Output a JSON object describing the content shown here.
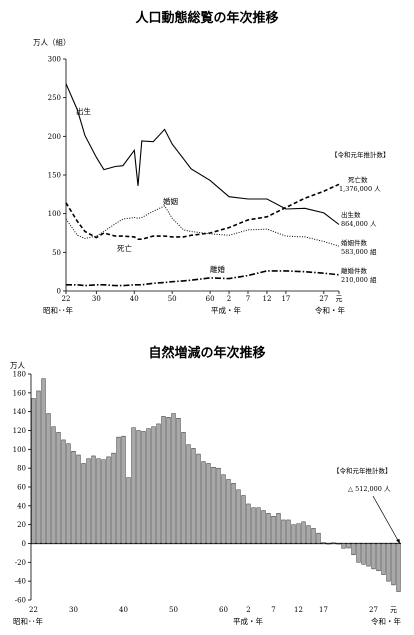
{
  "chart_data": [
    {
      "type": "line",
      "title": "人口動態総覧の年次推移",
      "ylabel": "万人（組）",
      "ylim": [
        0,
        300
      ],
      "yticks": [
        "0",
        "50",
        "100",
        "150",
        "200",
        "250",
        "300"
      ],
      "x_tick_labels": [
        "22",
        "30",
        "40",
        "50",
        "60",
        "2",
        "7",
        "12",
        "17",
        "27",
        "元"
      ],
      "x_era_labels": {
        "showa": "昭和･･年",
        "heisei": "平成・年",
        "reiwa": "令和・年"
      },
      "years": [
        1947,
        1950,
        1952,
        1955,
        1957,
        1960,
        1962,
        1965,
        1966,
        1967,
        1970,
        1973,
        1975,
        1978,
        1980,
        1985,
        1990,
        1995,
        2000,
        2005,
        2010,
        2015,
        2019
      ],
      "series": [
        {
          "name": "出生",
          "style": "solid",
          "values": [
            268,
            234,
            201,
            173,
            157,
            161,
            162,
            182,
            136,
            194,
            193,
            209,
            190,
            171,
            158,
            143,
            122,
            119,
            119,
            106,
            107,
            101,
            86
          ]
        },
        {
          "name": "死亡",
          "style": "dashed",
          "values": [
            114,
            90,
            77,
            69,
            75,
            71,
            71,
            70,
            67,
            67,
            71,
            71,
            70,
            70,
            72,
            75,
            82,
            92,
            96,
            108,
            120,
            129,
            138
          ]
        },
        {
          "name": "婚姻",
          "style": "dotted",
          "values": [
            93,
            72,
            68,
            71,
            77,
            87,
            93,
            95,
            94,
            95,
            103,
            110,
            94,
            79,
            77,
            74,
            72,
            79,
            80,
            71,
            70,
            64,
            58
          ]
        },
        {
          "name": "離婚",
          "style": "dashdot",
          "values": [
            8,
            8,
            7,
            8,
            8,
            7,
            7,
            8,
            8,
            8,
            10,
            11,
            12,
            13,
            14,
            17,
            16,
            20,
            26,
            26,
            25,
            23,
            21
          ]
        }
      ],
      "labels_on_chart": {
        "birth": "出生",
        "death": "死亡",
        "marriage": "婚姻",
        "divorce": "離婚"
      },
      "legend": {
        "header": "【令和元年推計数】",
        "items": [
          {
            "name": "死亡数",
            "value": "1,376,000 人"
          },
          {
            "name": "出生数",
            "value": "864,000 人"
          },
          {
            "name": "婚姻件数",
            "value": "583,000 組"
          },
          {
            "name": "離婚件数",
            "value": "210,000 組"
          }
        ]
      }
    },
    {
      "type": "bar",
      "title": "自然増減の年次推移",
      "ylabel": "万人",
      "ylim": [
        -60,
        180
      ],
      "yticks": [
        "-60",
        "-40",
        "-20",
        "0",
        "20",
        "40",
        "60",
        "80",
        "100",
        "120",
        "140",
        "160",
        "180"
      ],
      "x_tick_labels": [
        "22",
        "30",
        "40",
        "50",
        "60",
        "2",
        "7",
        "12",
        "17",
        "27",
        "元"
      ],
      "x_era_labels": {
        "showa": "昭和･･年",
        "heisei": "平成・年",
        "reiwa": "令和・年"
      },
      "first_year": 1947,
      "values": [
        154,
        162,
        175,
        138,
        124,
        118,
        110,
        106,
        98,
        94,
        85,
        90,
        93,
        90,
        89,
        92,
        96,
        113,
        114,
        70,
        123,
        120,
        119,
        122,
        124,
        127,
        135,
        134,
        138,
        133,
        118,
        105,
        101,
        95,
        87,
        85,
        81,
        80,
        73,
        68,
        64,
        57,
        51,
        42,
        38,
        38,
        35,
        32,
        29,
        32,
        25,
        25,
        20,
        21,
        23,
        19,
        16,
        11,
        1,
        -0.2,
        0.8,
        -0.2,
        -5,
        -4.8,
        -12,
        -20,
        -22,
        -24,
        -27,
        -29,
        -33,
        -40,
        -44,
        -51
      ],
      "legend": {
        "header": "【令和元年推計数】",
        "items": [
          {
            "name": "",
            "value": "△ 512,000 人"
          }
        ]
      }
    }
  ]
}
